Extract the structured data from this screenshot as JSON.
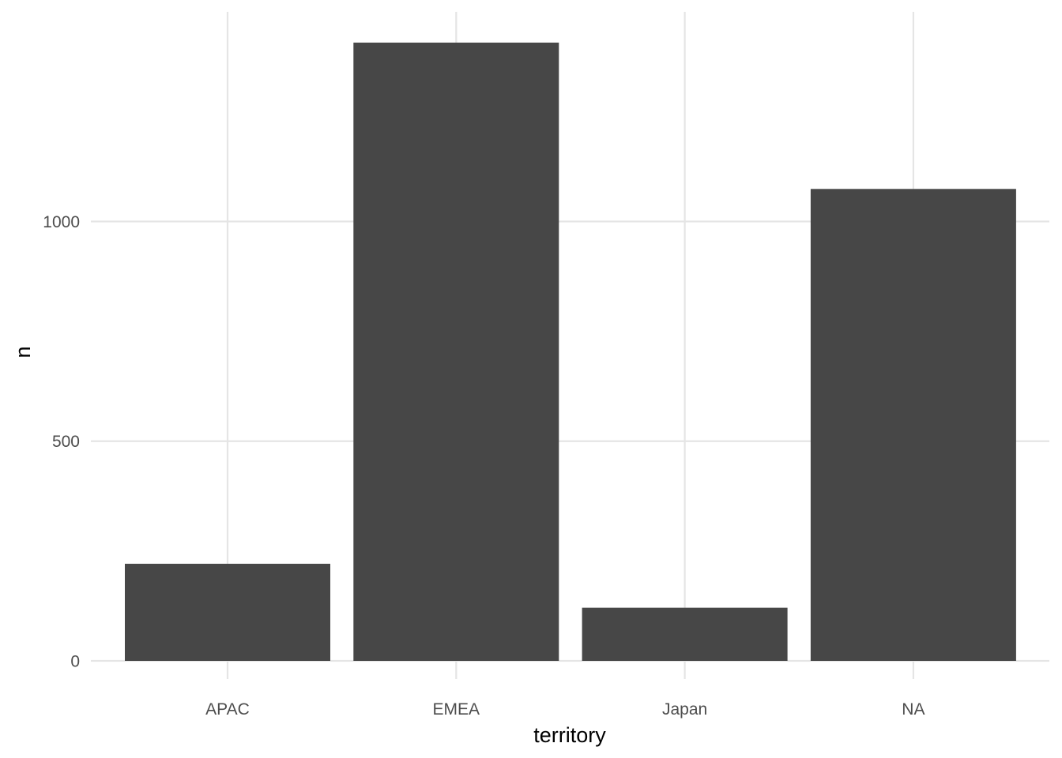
{
  "chart_data": {
    "type": "bar",
    "categories": [
      "APAC",
      "EMEA",
      "Japan",
      "NA"
    ],
    "values": [
      221,
      1407,
      121,
      1074
    ],
    "xlabel": "territory",
    "ylabel": "n",
    "yticks": [
      0,
      500,
      1000
    ],
    "ylim": [
      0,
      1477
    ],
    "grid": true,
    "legend": "none"
  },
  "colors": {
    "bar": "#474747",
    "grid": "#e5e5e5",
    "background": "#ffffff"
  }
}
